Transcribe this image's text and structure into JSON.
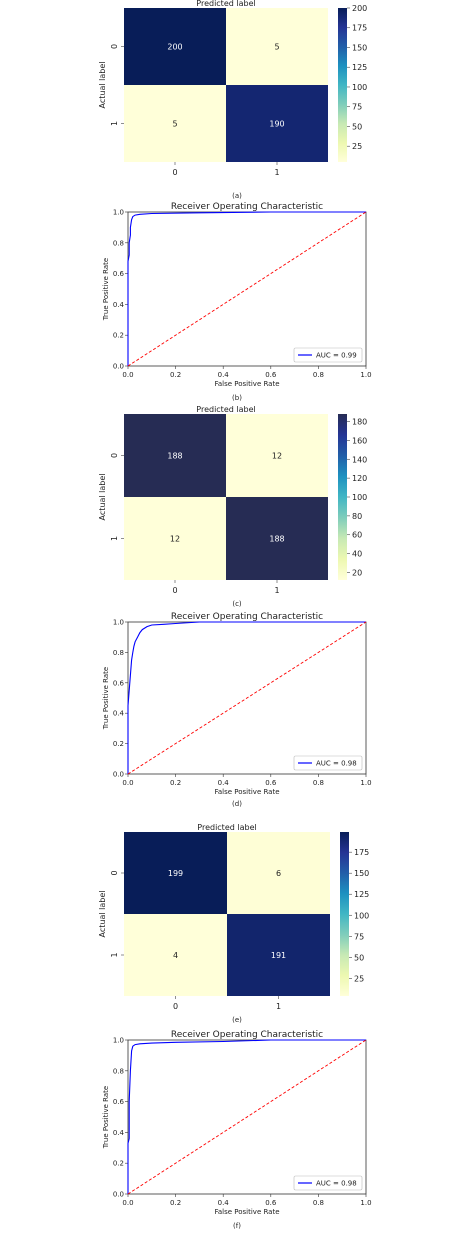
{
  "chart_data": [
    {
      "type": "heatmap",
      "panel_label": "(a)",
      "title": "Predicted label",
      "xlabel": "",
      "ylabel": "Actual label",
      "x_categories": [
        "0",
        "1"
      ],
      "y_categories": [
        "0",
        "1"
      ],
      "values": [
        [
          200,
          5
        ],
        [
          5,
          190
        ]
      ],
      "colorbar": {
        "range": [
          5,
          200
        ],
        "ticks": [
          "25",
          "50",
          "75",
          "100",
          "125",
          "150",
          "175",
          "200"
        ]
      },
      "colormap": [
        "#ffffd9",
        "#edf8b1",
        "#c7e9b4",
        "#7fcdbb",
        "#41b6c4",
        "#1d91c0",
        "#225ea8",
        "#253494",
        "#081d58"
      ]
    },
    {
      "type": "line",
      "panel_label": "(b)",
      "title": "Receiver Operating Characteristic",
      "xlabel": "False Positive Rate",
      "ylabel": "True Positive Rate",
      "xlim": [
        0,
        1
      ],
      "ylim": [
        0,
        1
      ],
      "x_ticks": [
        "0.0",
        "0.2",
        "0.4",
        "0.6",
        "0.8",
        "1.0"
      ],
      "y_ticks": [
        "0.0",
        "0.2",
        "0.4",
        "0.6",
        "0.8",
        "1.0"
      ],
      "legend": "lower-right",
      "series": [
        {
          "name": "AUC = 0.99",
          "color": "#0000ff",
          "style": "solid",
          "x": [
            0,
            0,
            0.005,
            0.005,
            0.01,
            0.01,
            0.015,
            0.02,
            0.03,
            0.05,
            0.1,
            0.3,
            0.6,
            1.0
          ],
          "y": [
            0,
            0.68,
            0.72,
            0.8,
            0.85,
            0.9,
            0.95,
            0.97,
            0.98,
            0.985,
            0.99,
            0.995,
            1.0,
            1.0
          ]
        },
        {
          "name": "",
          "color": "#ff0000",
          "style": "dashed",
          "x": [
            0,
            1
          ],
          "y": [
            0,
            1
          ]
        }
      ]
    },
    {
      "type": "heatmap",
      "panel_label": "(c)",
      "title": "Predicted label",
      "xlabel": "",
      "ylabel": "Actual label",
      "x_categories": [
        "0",
        "1"
      ],
      "y_categories": [
        "0",
        "1"
      ],
      "values": [
        [
          188,
          12
        ],
        [
          12,
          188
        ]
      ],
      "colorbar": {
        "range": [
          12,
          188
        ],
        "ticks": [
          "20",
          "40",
          "60",
          "80",
          "100",
          "120",
          "140",
          "160",
          "180"
        ]
      },
      "colormap": [
        "#ffffd9",
        "#edf8b1",
        "#c7e9b4",
        "#7fcdbb",
        "#41b6c4",
        "#1d91c0",
        "#225ea8",
        "#253494",
        "#262c54"
      ]
    },
    {
      "type": "line",
      "panel_label": "(d)",
      "title": "Receiver Operating Characteristic",
      "xlabel": "False Positive Rate",
      "ylabel": "True Positive Rate",
      "xlim": [
        0,
        1
      ],
      "ylim": [
        0,
        1
      ],
      "x_ticks": [
        "0.0",
        "0.2",
        "0.4",
        "0.6",
        "0.8",
        "1.0"
      ],
      "y_ticks": [
        "0.0",
        "0.2",
        "0.4",
        "0.6",
        "0.8",
        "1.0"
      ],
      "legend": "lower-right",
      "series": [
        {
          "name": "AUC = 0.98",
          "color": "#0000ff",
          "style": "solid",
          "x": [
            0,
            0,
            0.005,
            0.01,
            0.015,
            0.02,
            0.025,
            0.03,
            0.04,
            0.05,
            0.06,
            0.08,
            0.1,
            0.15,
            0.2,
            0.3,
            0.5,
            1.0
          ],
          "y": [
            0,
            0.45,
            0.55,
            0.65,
            0.75,
            0.8,
            0.84,
            0.87,
            0.9,
            0.93,
            0.95,
            0.97,
            0.98,
            0.985,
            0.99,
            1.0,
            1.0,
            1.0
          ]
        },
        {
          "name": "",
          "color": "#ff0000",
          "style": "dashed",
          "x": [
            0,
            1
          ],
          "y": [
            0,
            1
          ]
        }
      ]
    },
    {
      "type": "heatmap",
      "panel_label": "(e)",
      "title": "Predicted label",
      "xlabel": "",
      "ylabel": "Actual label",
      "x_categories": [
        "0",
        "1"
      ],
      "y_categories": [
        "0",
        "1"
      ],
      "values": [
        [
          199,
          6
        ],
        [
          4,
          191
        ]
      ],
      "colorbar": {
        "range": [
          4,
          199
        ],
        "ticks": [
          "25",
          "50",
          "75",
          "100",
          "125",
          "150",
          "175"
        ]
      },
      "colormap": [
        "#ffffd9",
        "#edf8b1",
        "#c7e9b4",
        "#7fcdbb",
        "#41b6c4",
        "#1d91c0",
        "#225ea8",
        "#253494",
        "#081d58"
      ]
    },
    {
      "type": "line",
      "panel_label": "(f)",
      "title": "Receiver Operating Characteristic",
      "xlabel": "False Positive Rate",
      "ylabel": "True Positive Rate",
      "xlim": [
        0,
        1
      ],
      "ylim": [
        0,
        1
      ],
      "x_ticks": [
        "0.0",
        "0.2",
        "0.4",
        "0.6",
        "0.8",
        "1.0"
      ],
      "y_ticks": [
        "0.0",
        "0.2",
        "0.4",
        "0.6",
        "0.8",
        "1.0"
      ],
      "legend": "lower-right",
      "series": [
        {
          "name": "AUC = 0.98",
          "color": "#0000ff",
          "style": "solid",
          "x": [
            0,
            0,
            0.005,
            0.005,
            0.01,
            0.015,
            0.02,
            0.03,
            0.05,
            0.1,
            0.2,
            0.4,
            0.6,
            1.0
          ],
          "y": [
            0,
            0.33,
            0.36,
            0.6,
            0.8,
            0.93,
            0.96,
            0.97,
            0.975,
            0.98,
            0.985,
            0.99,
            1.0,
            1.0
          ]
        },
        {
          "name": "",
          "color": "#ff0000",
          "style": "dashed",
          "x": [
            0,
            1
          ],
          "y": [
            0,
            1
          ]
        }
      ]
    }
  ]
}
